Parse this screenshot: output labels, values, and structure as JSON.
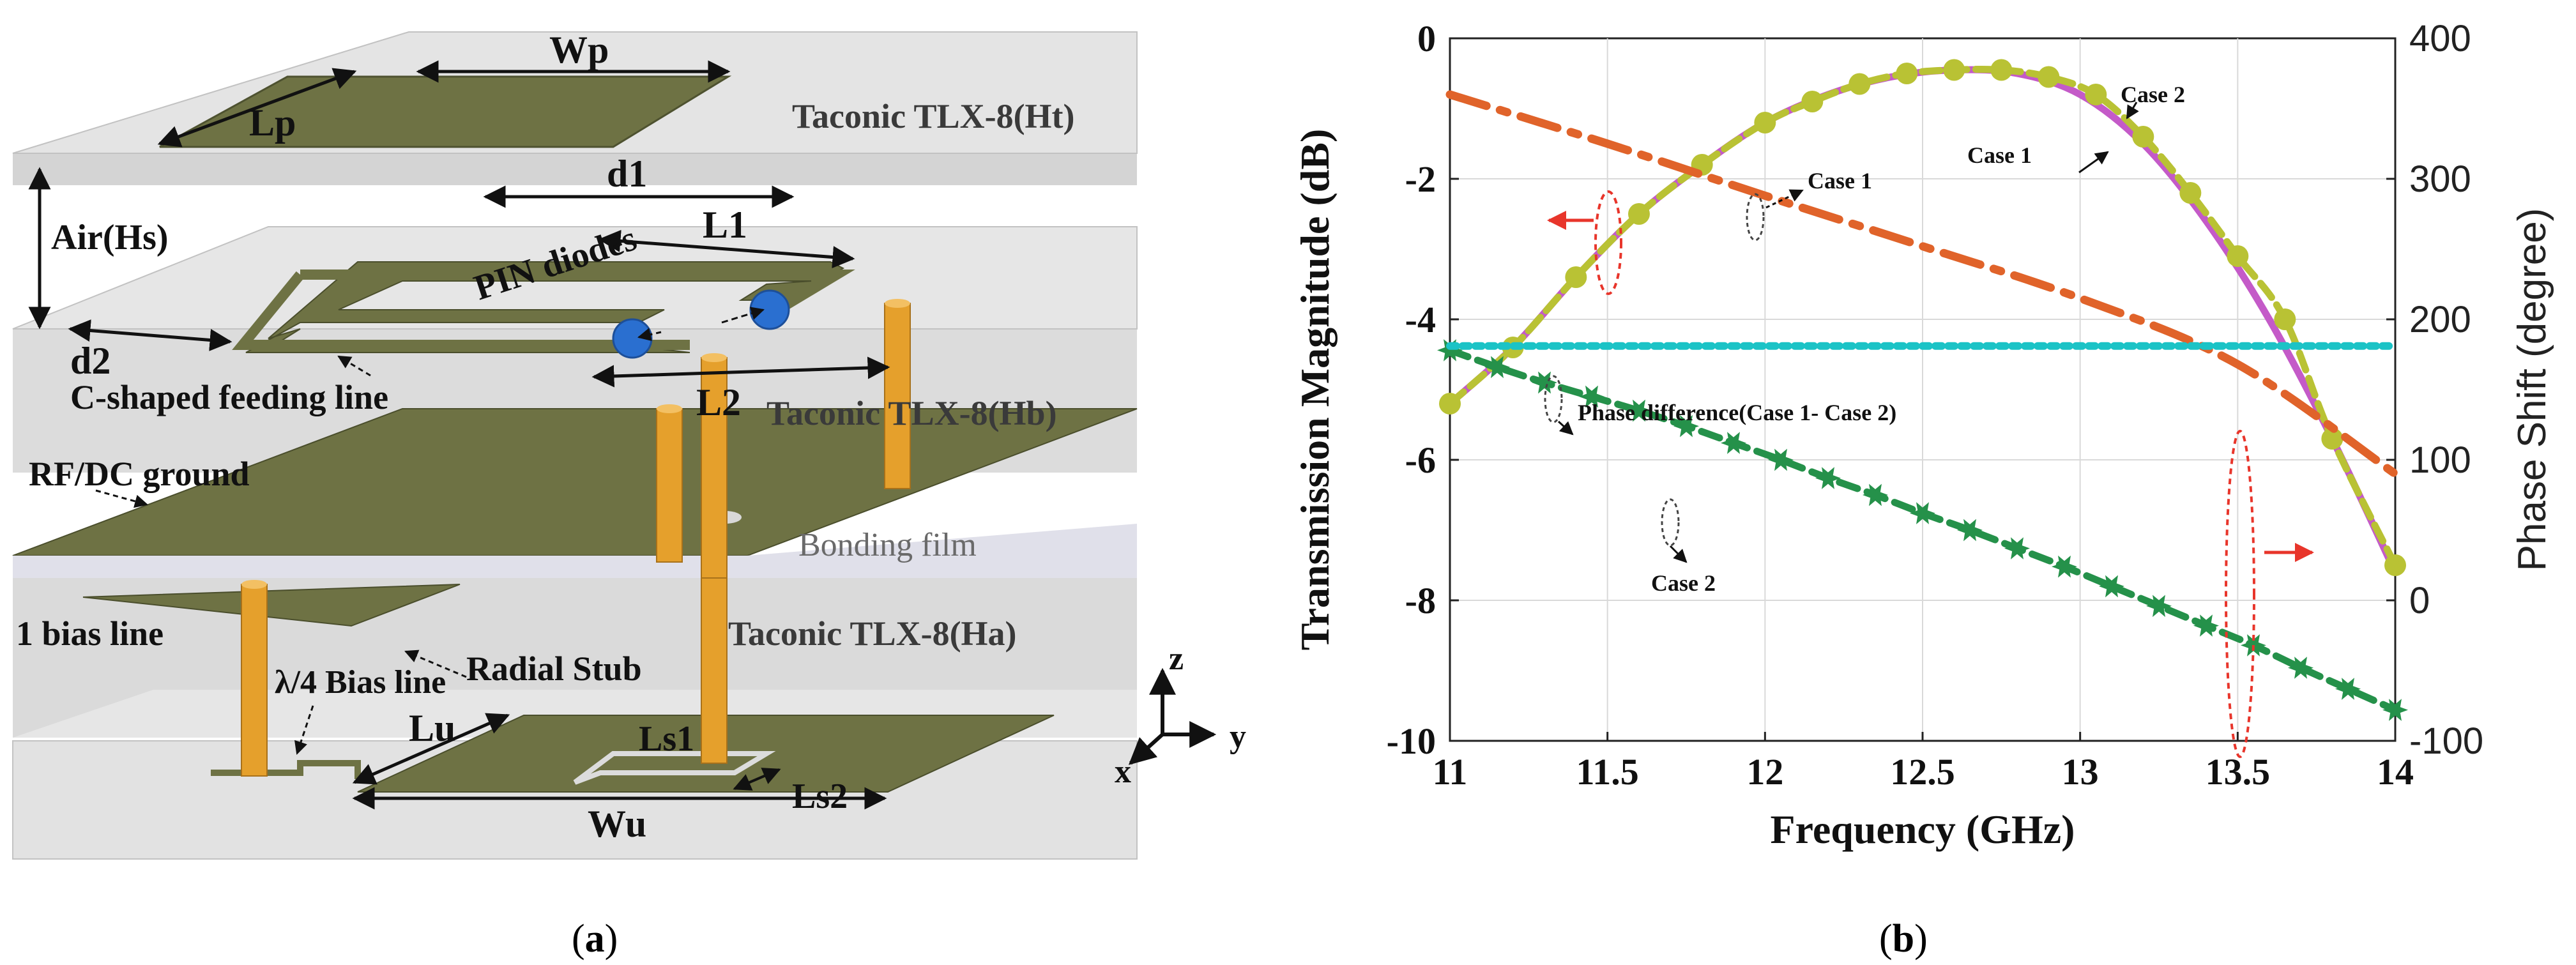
{
  "panel_a": {
    "caption_open": "(",
    "caption_letter": "a",
    "caption_close": ")",
    "labels": {
      "wp": "Wp",
      "lp": "Lp",
      "ht_layer": "Taconic TLX-8(Ht)",
      "d1": "d1",
      "air": "Air(Hs)",
      "l1": "L1",
      "pin_diodes": "PIN diodes",
      "d2": "d2",
      "l2": "L2",
      "c_feed": "C-shaped feeding line",
      "hb_layer": "Taconic TLX-8(Hb)",
      "ground": "RF/DC ground",
      "bonding": "Bonding film",
      "bias1": "1 bias line",
      "radial": "Radial Stub",
      "ha_layer": "Taconic TLX-8(Ha)",
      "quarter_bias": "λ/4 Bias line",
      "lu": "Lu",
      "ls1": "Ls1",
      "ls2": "Ls2",
      "wu": "Wu",
      "axis_z": "z",
      "axis_x": "x",
      "axis_y": "y"
    }
  },
  "panel_b": {
    "caption_open": "(",
    "caption_letter": "b",
    "caption_close": ")",
    "annotations": {
      "case1_left": "Case 1",
      "case2_top": "Case 2",
      "case1_top": "Case 1",
      "phase_diff": "Phase difference(Case 1- Case 2)",
      "case2_bottom": "Case 2"
    },
    "colors": {
      "case1_mag": "#c45ac8",
      "case2_mag": "#b9c234",
      "case1_phase": "#e0632a",
      "case2_phase": "#25914a",
      "phase_diff": "#1bc3c6",
      "marker_red": "#e8352b"
    }
  },
  "chart_data": {
    "type": "line",
    "xlabel": "Frequency (GHz)",
    "ylabel": "Transmission Magnitude (dB)",
    "y2label": "Phase Shift (degree)",
    "xlim": [
      11,
      14
    ],
    "ylim": [
      -10,
      0
    ],
    "y2lim": [
      -100,
      400
    ],
    "x_ticks": [
      11,
      11.5,
      12,
      12.5,
      13,
      13.5,
      14
    ],
    "x_tick_labels": [
      "11",
      "11.5",
      "12",
      "12.5",
      "13",
      "13.5",
      "14"
    ],
    "y_ticks": [
      0,
      -2,
      -4,
      -6,
      -8,
      -10
    ],
    "y_tick_labels": [
      "0",
      "-2",
      "-4",
      "-6",
      "-8",
      "-10"
    ],
    "y2_ticks": [
      400,
      300,
      200,
      100,
      0,
      -100
    ],
    "y2_tick_labels": [
      "400",
      "300",
      "200",
      "100",
      "0",
      "-100"
    ],
    "grid": true,
    "series": [
      {
        "name": "Case 1 magnitude",
        "axis": "left",
        "style": "solid",
        "x": [
          11.0,
          11.2,
          11.4,
          11.6,
          11.8,
          12.0,
          12.2,
          12.4,
          12.6,
          12.8,
          13.0,
          13.2,
          13.4,
          13.6,
          13.8,
          14.0
        ],
        "values": [
          -5.2,
          -4.4,
          -3.4,
          -2.5,
          -1.8,
          -1.2,
          -0.8,
          -0.55,
          -0.45,
          -0.5,
          -0.8,
          -1.5,
          -2.6,
          -4.0,
          -5.7,
          -7.6
        ]
      },
      {
        "name": "Case 2 magnitude",
        "axis": "left",
        "style": "dashed-markers",
        "x": [
          11.0,
          11.2,
          11.4,
          11.6,
          11.8,
          12.0,
          12.15,
          12.3,
          12.45,
          12.6,
          12.75,
          12.9,
          13.05,
          13.2,
          13.35,
          13.5,
          13.65,
          13.8,
          14.0
        ],
        "values": [
          -5.2,
          -4.4,
          -3.4,
          -2.5,
          -1.8,
          -1.2,
          -0.9,
          -0.65,
          -0.5,
          -0.45,
          -0.45,
          -0.55,
          -0.8,
          -1.4,
          -2.2,
          -3.1,
          -4.0,
          -5.7,
          -7.5
        ]
      },
      {
        "name": "Case 1 phase",
        "axis": "right",
        "style": "dash-dot",
        "x": [
          11.0,
          11.5,
          12.0,
          12.5,
          13.0,
          13.5,
          14.0
        ],
        "values": [
          360,
          325,
          288,
          252,
          215,
          168,
          90
        ]
      },
      {
        "name": "Case 2 phase",
        "axis": "right",
        "style": "dashed-markers",
        "x": [
          11.0,
          11.15,
          11.3,
          11.45,
          11.6,
          11.75,
          11.9,
          12.05,
          12.2,
          12.35,
          12.5,
          12.65,
          12.8,
          12.95,
          13.1,
          13.25,
          13.4,
          13.55,
          13.7,
          13.85,
          14.0
        ],
        "values": [
          178,
          166,
          155,
          145,
          135,
          124,
          112,
          100,
          87,
          75,
          62,
          50,
          37,
          24,
          10,
          -4,
          -18,
          -32,
          -48,
          -63,
          -78
        ]
      },
      {
        "name": "Phase difference (Case 1 - Case 2)",
        "axis": "right",
        "style": "dotted",
        "x": [
          11.0,
          14.0
        ],
        "values": [
          181,
          181
        ]
      }
    ]
  }
}
